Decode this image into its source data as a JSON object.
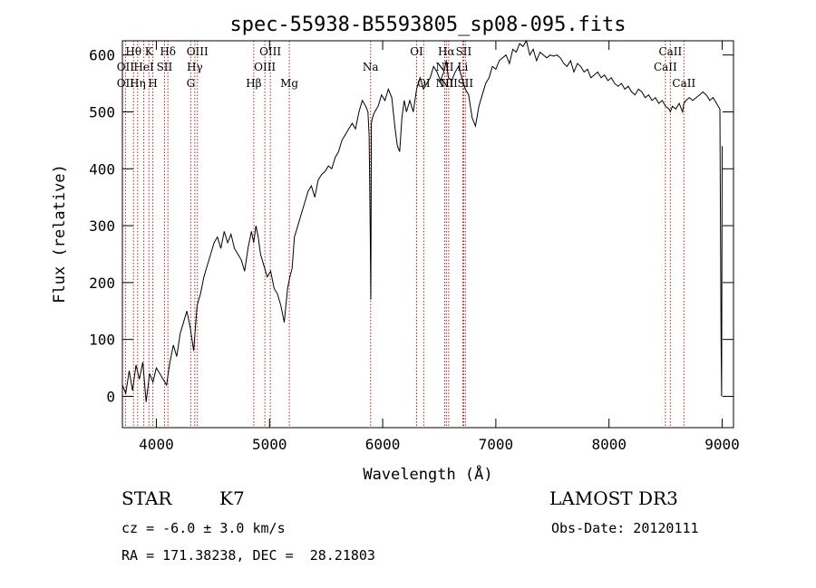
{
  "chart_data": {
    "type": "line",
    "title": "spec-55938-B5593805_sp08-095.fits",
    "xlabel": "Wavelength (Å)",
    "ylabel": "Flux (relative)",
    "xlim": [
      3700,
      9100
    ],
    "ylim": [
      -55,
      625
    ],
    "xticks": [
      4000,
      5000,
      6000,
      7000,
      8000,
      9000
    ],
    "yticks": [
      0,
      100,
      200,
      300,
      400,
      500,
      600
    ],
    "line_color": "#000000",
    "marker_color": "#b22222",
    "series": [
      {
        "x": [
          3700,
          3730,
          3760,
          3790,
          3820,
          3850,
          3880,
          3910,
          3940,
          3970,
          4000,
          4030,
          4060,
          4090,
          4120,
          4150,
          4180,
          4210,
          4240,
          4270,
          4300,
          4330,
          4360,
          4390,
          4420,
          4450,
          4480,
          4510,
          4540,
          4570,
          4600,
          4630,
          4660,
          4690,
          4720,
          4750,
          4780,
          4810,
          4840,
          4860,
          4880,
          4900,
          4920,
          4950,
          4980,
          5010,
          5040,
          5070,
          5100,
          5130,
          5160,
          5180,
          5200,
          5220,
          5250,
          5280,
          5310,
          5340,
          5370,
          5400,
          5430,
          5460,
          5490,
          5520,
          5550,
          5580,
          5610,
          5640,
          5670,
          5700,
          5730,
          5760,
          5790,
          5820,
          5850,
          5870,
          5880,
          5890,
          5895,
          5900,
          5910,
          5930,
          5960,
          5990,
          6020,
          6050,
          6080,
          6110,
          6130,
          6150,
          6170,
          6190,
          6210,
          6240,
          6270,
          6300,
          6330,
          6360,
          6390,
          6420,
          6450,
          6480,
          6510,
          6540,
          6562,
          6580,
          6610,
          6640,
          6670,
          6700,
          6730,
          6760,
          6790,
          6820,
          6850,
          6880,
          6910,
          6940,
          6970,
          7000,
          7030,
          7060,
          7090,
          7120,
          7150,
          7180,
          7210,
          7240,
          7270,
          7300,
          7330,
          7360,
          7390,
          7420,
          7450,
          7480,
          7510,
          7540,
          7570,
          7600,
          7630,
          7660,
          7690,
          7720,
          7750,
          7780,
          7810,
          7840,
          7870,
          7900,
          7930,
          7960,
          7990,
          8020,
          8050,
          8080,
          8110,
          8140,
          8170,
          8200,
          8230,
          8260,
          8290,
          8320,
          8350,
          8380,
          8410,
          8440,
          8470,
          8500,
          8530,
          8542,
          8560,
          8590,
          8620,
          8650,
          8662,
          8680,
          8710,
          8740,
          8770,
          8800,
          8830,
          8860,
          8890,
          8920,
          8950,
          8980,
          8990,
          8995,
          9000
        ],
        "y": [
          20,
          5,
          45,
          10,
          55,
          30,
          60,
          -10,
          40,
          25,
          50,
          40,
          30,
          20,
          60,
          90,
          70,
          110,
          130,
          150,
          120,
          80,
          160,
          180,
          210,
          230,
          250,
          270,
          280,
          260,
          290,
          270,
          285,
          260,
          250,
          240,
          220,
          260,
          290,
          270,
          300,
          280,
          250,
          230,
          210,
          220,
          190,
          180,
          160,
          130,
          190,
          210,
          225,
          280,
          300,
          320,
          340,
          360,
          370,
          350,
          380,
          390,
          395,
          405,
          400,
          420,
          430,
          450,
          460,
          470,
          480,
          470,
          500,
          520,
          510,
          500,
          460,
          300,
          170,
          480,
          490,
          500,
          510,
          530,
          520,
          540,
          525,
          470,
          440,
          430,
          490,
          520,
          500,
          520,
          500,
          540,
          560,
          540,
          550,
          560,
          580,
          570,
          555,
          570,
          590,
          560,
          555,
          570,
          580,
          560,
          540,
          530,
          490,
          475,
          510,
          530,
          550,
          560,
          580,
          575,
          590,
          595,
          600,
          585,
          610,
          605,
          620,
          615,
          625,
          600,
          610,
          590,
          605,
          600,
          595,
          600,
          598,
          600,
          595,
          585,
          580,
          590,
          570,
          585,
          580,
          570,
          575,
          560,
          565,
          570,
          560,
          565,
          555,
          560,
          550,
          545,
          550,
          540,
          545,
          535,
          530,
          540,
          535,
          525,
          530,
          520,
          525,
          515,
          520,
          510,
          505,
          500,
          510,
          505,
          515,
          500,
          515,
          520,
          525,
          520,
          525,
          530,
          535,
          530,
          520,
          525,
          515,
          505,
          100,
          0,
          440
        ]
      }
    ],
    "lines": [
      {
        "name": "OII",
        "wl": 3727,
        "row": 2
      },
      {
        "name": "OII",
        "wl": 3727,
        "row": 3
      },
      {
        "name": "Hθ",
        "wl": 3798,
        "row": 1
      },
      {
        "name": "Hη",
        "wl": 3835,
        "row": 3
      },
      {
        "name": "HeI",
        "wl": 3889,
        "row": 2
      },
      {
        "name": "K",
        "wl": 3934,
        "row": 1
      },
      {
        "name": "H",
        "wl": 3969,
        "row": 3
      },
      {
        "name": "SII",
        "wl": 4072,
        "row": 2
      },
      {
        "name": "Hδ",
        "wl": 4102,
        "row": 1
      },
      {
        "name": "G",
        "wl": 4304,
        "row": 3
      },
      {
        "name": "Hγ",
        "wl": 4340,
        "row": 2
      },
      {
        "name": "OIII",
        "wl": 4363,
        "row": 1
      },
      {
        "name": "Hβ",
        "wl": 4861,
        "row": 3
      },
      {
        "name": "OIII",
        "wl": 4959,
        "row": 2
      },
      {
        "name": "OIII",
        "wl": 5007,
        "row": 1
      },
      {
        "name": "Mg",
        "wl": 5175,
        "row": 3
      },
      {
        "name": "Na",
        "wl": 5893,
        "row": 2
      },
      {
        "name": "OI",
        "wl": 6300,
        "row": 1
      },
      {
        "name": "OI",
        "wl": 6363,
        "row": 3
      },
      {
        "name": "NII",
        "wl": 6548,
        "row": 2
      },
      {
        "name": "NII",
        "wl": 6548,
        "row": 3
      },
      {
        "name": "Hα",
        "wl": 6563,
        "row": 1
      },
      {
        "name": "NII",
        "wl": 6583,
        "row": 3
      },
      {
        "name": "Li",
        "wl": 6708,
        "row": 2
      },
      {
        "name": "SII",
        "wl": 6716,
        "row": 1
      },
      {
        "name": "SII",
        "wl": 6731,
        "row": 3
      },
      {
        "name": "CaII",
        "wl": 8498,
        "row": 2
      },
      {
        "name": "CaII",
        "wl": 8542,
        "row": 1
      },
      {
        "name": "CaII",
        "wl": 8662,
        "row": 3
      }
    ]
  },
  "info": {
    "object_class": "STAR",
    "subclass": "K7",
    "survey": "LAMOST DR3",
    "redshift": "cz = -6.0 ± 3.0 km/s",
    "obs_date": "Obs-Date: 20120111",
    "coords": "RA = 171.38238, DEC =  28.21803"
  }
}
